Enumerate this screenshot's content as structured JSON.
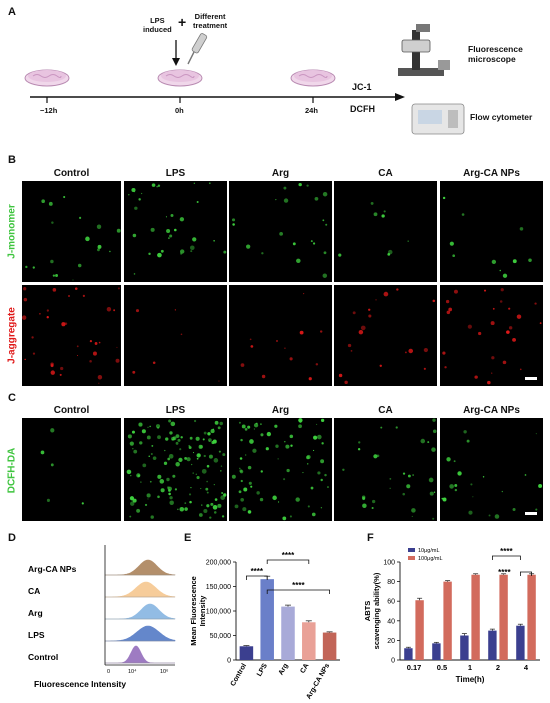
{
  "panels": {
    "A": "A",
    "B": "B",
    "C": "C",
    "D": "D",
    "E": "E",
    "F": "F"
  },
  "panelA": {
    "timeline": [
      "−12h",
      "0h",
      "24h"
    ],
    "lps_text": [
      "LPS",
      "induced"
    ],
    "plus": "+",
    "treat_text": [
      "Different",
      "treatment"
    ],
    "jc1": "JC-1",
    "dcfh": "DCFH",
    "fluor": [
      "Fluorescence",
      "microscope"
    ],
    "flow": "Flow cytometer"
  },
  "groups": [
    "Control",
    "LPS",
    "Arg",
    "CA",
    "Arg-CA NPs"
  ],
  "panelB": {
    "row1": "J-monomer",
    "row2": "J-aggregate"
  },
  "panelC": {
    "row": "DCFH-DA"
  },
  "panelD": {
    "labels": [
      "Arg-CA NPs",
      "CA",
      "Arg",
      "LPS",
      "Control"
    ],
    "xlabel": "Fluorescence Intensity",
    "ticks": [
      "0",
      "10⁴",
      "10⁶"
    ],
    "colors": [
      "#a67c52",
      "#f5c489",
      "#7fb1e0",
      "#4a73c2",
      "#8e65b8"
    ]
  },
  "colors": {
    "green": "#3ed13e",
    "red": "#e01818",
    "navy": "#3b3f8f",
    "salmon": "#d26b5d"
  },
  "chart_data": [
    {
      "type": "bar",
      "panel": "E",
      "categories": [
        "Control",
        "LPS",
        "Arg",
        "CA",
        "Arg-CA NPs"
      ],
      "values": [
        28000,
        165000,
        109000,
        77000,
        56000
      ],
      "errors": [
        1500,
        6000,
        3000,
        3000,
        1500
      ],
      "colors": [
        "#3b3f8f",
        "#6a7fc9",
        "#a8aad8",
        "#e9a197",
        "#c26558"
      ],
      "ylabel": "Mean Fluorescence Intensity",
      "ylim": [
        0,
        200000
      ],
      "yticks": [
        "0",
        "50,000",
        "100,000",
        "150,000",
        "200,000"
      ],
      "sig": [
        "****",
        "****",
        "****"
      ]
    },
    {
      "type": "bar",
      "panel": "F",
      "categories": [
        "0.17",
        "0.5",
        "1",
        "2",
        "4"
      ],
      "series": [
        {
          "name": "10μg/mL",
          "values": [
            12,
            17,
            25,
            30,
            35
          ],
          "errors": [
            1,
            1,
            2,
            1.5,
            1.5
          ],
          "color": "#3b3f8f"
        },
        {
          "name": "100μg/mL",
          "values": [
            61,
            80,
            87,
            87,
            87
          ],
          "errors": [
            2,
            1,
            1,
            1,
            1
          ],
          "color": "#d26b5d"
        }
      ],
      "xlabel": "Time(h)",
      "ylabel": [
        "ABTS",
        "scavenging ability(%)"
      ],
      "ylim": [
        0,
        100
      ],
      "yticks": [
        "0",
        "20",
        "40",
        "60",
        "80",
        "100"
      ],
      "sig": [
        "****",
        "****"
      ]
    }
  ]
}
